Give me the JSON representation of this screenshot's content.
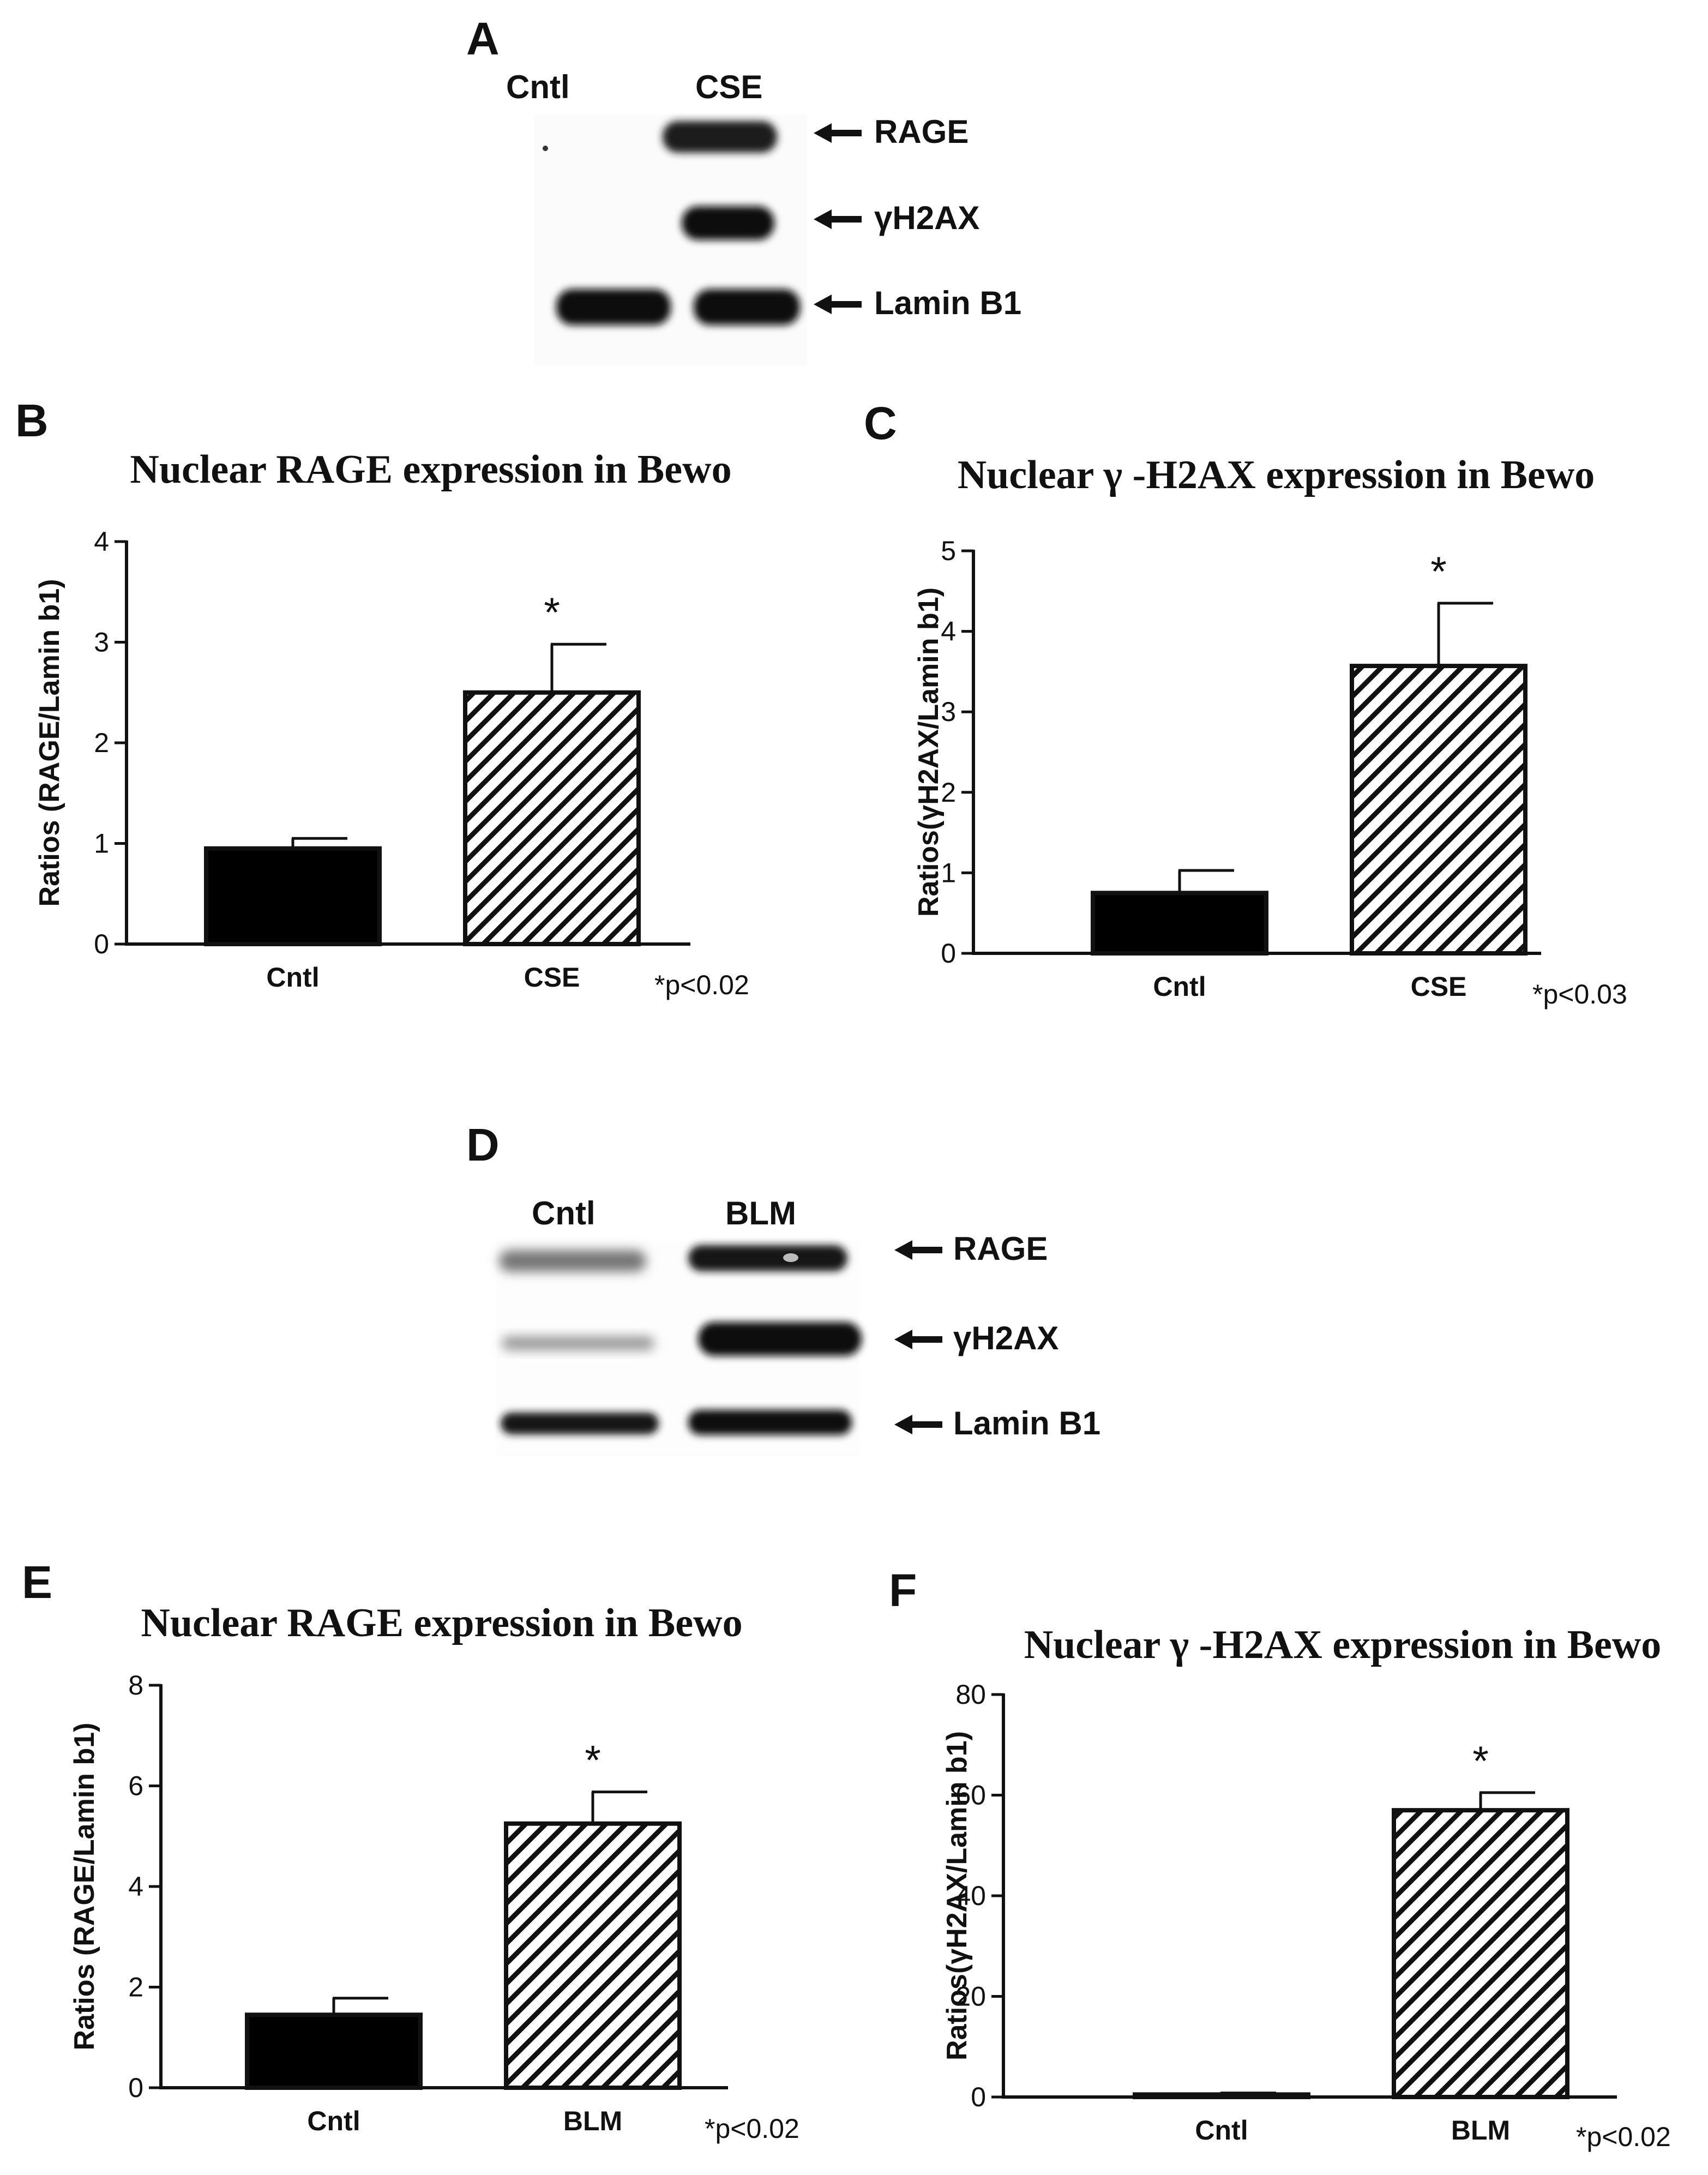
{
  "colors": {
    "ink": "#111111",
    "background": "#ffffff",
    "bar_cntl": "#000000",
    "bar_hatch": "#111111"
  },
  "blots": [
    {
      "letter": "A",
      "lanes": [
        "Cntl",
        "CSE"
      ],
      "bands": [
        "RAGE",
        "γH2AX",
        "Lamin B1"
      ],
      "arrow_icon": "left-arrow-icon"
    },
    {
      "letter": "D",
      "lanes": [
        "Cntl",
        "BLM"
      ],
      "bands": [
        "RAGE",
        "γH2AX",
        "Lamin B1"
      ],
      "arrow_icon": "left-arrow-icon"
    }
  ],
  "chart_data": [
    {
      "panel": "B",
      "type": "bar",
      "title": "Nuclear RAGE expression in Bewo",
      "xlabel": "",
      "ylabel": "Ratios (RAGE/Lamin b1)",
      "categories": [
        "Cntl",
        "CSE"
      ],
      "values": [
        0.95,
        2.5
      ],
      "errors": [
        0.1,
        0.48
      ],
      "fills": [
        "solid",
        "hatched"
      ],
      "ylim": [
        0,
        4
      ],
      "yticks": [
        "0",
        "1",
        "2",
        "3",
        "4"
      ],
      "significance": "*",
      "note": "*p<0.02",
      "grid": false
    },
    {
      "panel": "C",
      "type": "bar",
      "title": "Nuclear γ -H2AX expression in Bewo",
      "xlabel": "",
      "ylabel": "Ratios(γH2AX/Lamin b1)",
      "categories": [
        "Cntl",
        "CSE"
      ],
      "values": [
        0.75,
        3.57
      ],
      "errors": [
        0.28,
        0.78
      ],
      "fills": [
        "solid",
        "hatched"
      ],
      "ylim": [
        0,
        5
      ],
      "yticks": [
        "0",
        "1",
        "2",
        "3",
        "4",
        "5"
      ],
      "significance": "*",
      "note": "*p<0.03",
      "grid": false
    },
    {
      "panel": "E",
      "type": "bar",
      "title": "Nuclear RAGE expression in Bewo",
      "xlabel": "",
      "ylabel": "Ratios (RAGE/Lamin b1)",
      "categories": [
        "Cntl",
        "BLM"
      ],
      "values": [
        1.45,
        5.25
      ],
      "errors": [
        0.33,
        0.63
      ],
      "fills": [
        "solid",
        "hatched"
      ],
      "ylim": [
        0,
        8
      ],
      "yticks": [
        "0",
        "2",
        "4",
        "6",
        "8"
      ],
      "significance": "*",
      "note": "*p<0.02",
      "grid": false
    },
    {
      "panel": "F",
      "type": "bar",
      "title": "Nuclear γ -H2AX expression in Bewo",
      "xlabel": "",
      "ylabel": "Ratios(γH2AX/Lamin b1)",
      "categories": [
        "Cntl",
        "BLM"
      ],
      "values": [
        0.5,
        57
      ],
      "errors": [
        0.3,
        3.5
      ],
      "fills": [
        "solid",
        "hatched"
      ],
      "ylim": [
        0,
        80
      ],
      "yticks": [
        "0",
        "20",
        "40",
        "60",
        "80"
      ],
      "significance": "*",
      "note": "*p<0.02",
      "grid": false
    }
  ]
}
